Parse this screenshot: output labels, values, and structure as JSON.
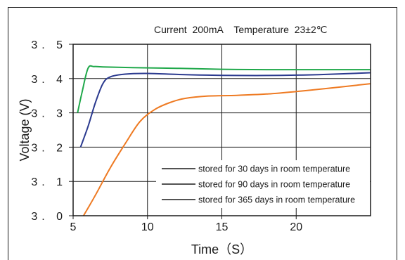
{
  "chart_data": {
    "type": "line",
    "title": "Current  200mA    Temperature  23±2℃",
    "xlabel": "Time（S）",
    "ylabel": "Voltage (V)",
    "xlim": [
      5,
      25
    ],
    "ylim": [
      3.0,
      3.5
    ],
    "x_ticks": [
      5,
      10,
      15,
      20
    ],
    "x_tick_labels": [
      "5",
      "10",
      "15",
      "20"
    ],
    "y_ticks": [
      3.0,
      3.1,
      3.2,
      3.3,
      3.4,
      3.5
    ],
    "y_tick_labels": [
      "3. 0",
      "3. 1",
      "3. 2",
      "3. 3",
      "3. 4",
      "3. 5"
    ],
    "grid": true,
    "legend_position": "bottom-right",
    "series": [
      {
        "name": "stored for 30 days in room temperature",
        "color": "#1fa84a",
        "points": [
          [
            5.3,
            3.3
          ],
          [
            5.6,
            3.36
          ],
          [
            6.0,
            3.43
          ],
          [
            6.4,
            3.435
          ],
          [
            7.0,
            3.434
          ],
          [
            9.0,
            3.432
          ],
          [
            12.0,
            3.43
          ],
          [
            15.0,
            3.427
          ],
          [
            18.0,
            3.426
          ],
          [
            20.0,
            3.426
          ],
          [
            22.0,
            3.426
          ],
          [
            25.0,
            3.426
          ]
        ]
      },
      {
        "name": "stored for 90 days in room temperature",
        "color": "#2b3a8f",
        "points": [
          [
            5.5,
            3.2
          ],
          [
            6.0,
            3.26
          ],
          [
            6.5,
            3.33
          ],
          [
            7.0,
            3.385
          ],
          [
            7.5,
            3.405
          ],
          [
            8.5,
            3.413
          ],
          [
            10.0,
            3.415
          ],
          [
            12.0,
            3.412
          ],
          [
            14.0,
            3.41
          ],
          [
            16.0,
            3.409
          ],
          [
            18.0,
            3.409
          ],
          [
            20.0,
            3.41
          ],
          [
            22.0,
            3.412
          ],
          [
            25.0,
            3.417
          ]
        ]
      },
      {
        "name": "stored for 365 days in room temperature",
        "color": "#ee7a22",
        "points": [
          [
            5.7,
            3.0
          ],
          [
            6.5,
            3.06
          ],
          [
            7.5,
            3.14
          ],
          [
            8.5,
            3.21
          ],
          [
            9.5,
            3.275
          ],
          [
            10.5,
            3.31
          ],
          [
            11.5,
            3.33
          ],
          [
            12.5,
            3.342
          ],
          [
            14.0,
            3.349
          ],
          [
            16.0,
            3.351
          ],
          [
            18.0,
            3.355
          ],
          [
            20.0,
            3.362
          ],
          [
            22.0,
            3.371
          ],
          [
            25.0,
            3.385
          ]
        ]
      }
    ]
  }
}
